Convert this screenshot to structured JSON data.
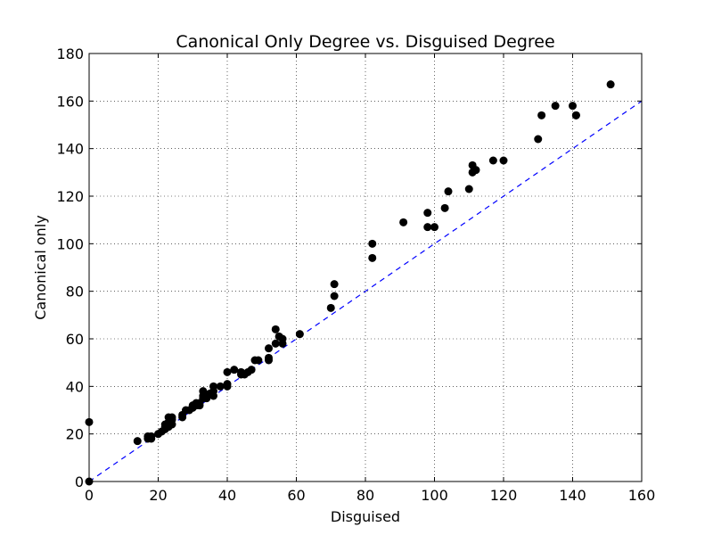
{
  "chart_data": {
    "type": "scatter",
    "title": "Canonical Only Degree vs. Disguised Degree",
    "xlabel": "Disguised",
    "ylabel": "Canonical only",
    "xlim": [
      0,
      160
    ],
    "ylim": [
      0,
      180
    ],
    "xticks": [
      0,
      20,
      40,
      60,
      80,
      100,
      120,
      140,
      160
    ],
    "yticks": [
      0,
      20,
      40,
      60,
      80,
      100,
      120,
      140,
      160,
      180
    ],
    "grid": true,
    "marker_color": "#000000",
    "reference_line": {
      "style": "dashed",
      "color": "#0000ff",
      "x": [
        0,
        160
      ],
      "y": [
        0,
        160
      ]
    },
    "points": [
      [
        0,
        25
      ],
      [
        0,
        0
      ],
      [
        14,
        17
      ],
      [
        17,
        18
      ],
      [
        17,
        19
      ],
      [
        18,
        18
      ],
      [
        18,
        19
      ],
      [
        20,
        20
      ],
      [
        21,
        21
      ],
      [
        22,
        22
      ],
      [
        22,
        23
      ],
      [
        22,
        24
      ],
      [
        23,
        27
      ],
      [
        23,
        23
      ],
      [
        23,
        25
      ],
      [
        24,
        24
      ],
      [
        24,
        27
      ],
      [
        24,
        26
      ],
      [
        27,
        27
      ],
      [
        27,
        28
      ],
      [
        28,
        30
      ],
      [
        29,
        30
      ],
      [
        30,
        32
      ],
      [
        30,
        31
      ],
      [
        31,
        33
      ],
      [
        31,
        32
      ],
      [
        32,
        33
      ],
      [
        32,
        32
      ],
      [
        33,
        35
      ],
      [
        33,
        36
      ],
      [
        33,
        38
      ],
      [
        34,
        36
      ],
      [
        34,
        35
      ],
      [
        35,
        37
      ],
      [
        36,
        38
      ],
      [
        36,
        36
      ],
      [
        36,
        40
      ],
      [
        38,
        40
      ],
      [
        40,
        40
      ],
      [
        40,
        41
      ],
      [
        40,
        46
      ],
      [
        42,
        47
      ],
      [
        44,
        45
      ],
      [
        44,
        46
      ],
      [
        45,
        45
      ],
      [
        46,
        46
      ],
      [
        47,
        47
      ],
      [
        48,
        51
      ],
      [
        49,
        51
      ],
      [
        52,
        51
      ],
      [
        52,
        52
      ],
      [
        52,
        56
      ],
      [
        54,
        58
      ],
      [
        54,
        64
      ],
      [
        55,
        61
      ],
      [
        56,
        58
      ],
      [
        56,
        60
      ],
      [
        61,
        62
      ],
      [
        70,
        73
      ],
      [
        71,
        78
      ],
      [
        71,
        83
      ],
      [
        82,
        94
      ],
      [
        82,
        100
      ],
      [
        91,
        109
      ],
      [
        98,
        107
      ],
      [
        98,
        113
      ],
      [
        100,
        107
      ],
      [
        103,
        115
      ],
      [
        104,
        122
      ],
      [
        110,
        123
      ],
      [
        111,
        130
      ],
      [
        111,
        133
      ],
      [
        112,
        131
      ],
      [
        117,
        135
      ],
      [
        120,
        135
      ],
      [
        130,
        144
      ],
      [
        131,
        154
      ],
      [
        135,
        158
      ],
      [
        140,
        158
      ],
      [
        141,
        154
      ],
      [
        141,
        154
      ],
      [
        151,
        167
      ]
    ]
  }
}
